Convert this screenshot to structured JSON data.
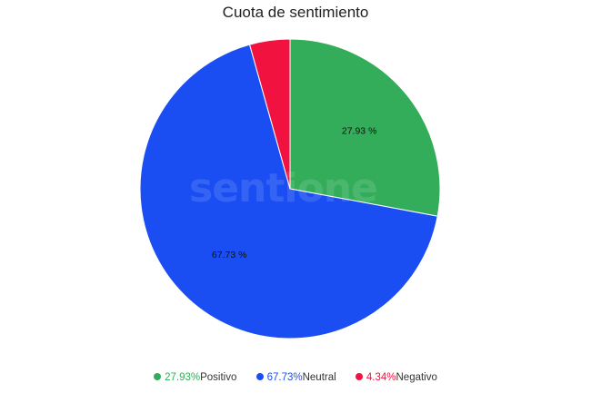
{
  "chart_data": {
    "type": "pie",
    "title": "Cuota de sentimiento",
    "slices": [
      {
        "name": "Positivo",
        "value": 27.93,
        "label": "27.93 %",
        "legend_pct": "27.93%",
        "color": "#33ad5a"
      },
      {
        "name": "Neutral",
        "value": 67.73,
        "label": "67.73 %",
        "legend_pct": "67.73%",
        "color": "#1a4ef2"
      },
      {
        "name": "Negativo",
        "value": 4.34,
        "label": "4.34 %",
        "legend_pct": "4.34%",
        "color": "#f2123f"
      }
    ],
    "start_angle_deg": 0,
    "direction": "clockwise",
    "legend_position": "bottom",
    "watermark": "sentione"
  }
}
